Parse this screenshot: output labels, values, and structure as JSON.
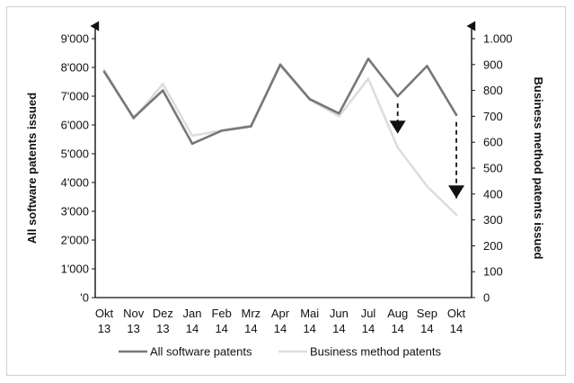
{
  "chart_data": {
    "type": "line",
    "categories": [
      [
        "Okt",
        "13"
      ],
      [
        "Nov",
        "13"
      ],
      [
        "Dez",
        "13"
      ],
      [
        "Jan",
        "14"
      ],
      [
        "Feb",
        "14"
      ],
      [
        "Mrz",
        "14"
      ],
      [
        "Apr",
        "14"
      ],
      [
        "Mai",
        "14"
      ],
      [
        "Jun",
        "14"
      ],
      [
        "Jul",
        "14"
      ],
      [
        "Aug",
        "14"
      ],
      [
        "Sep",
        "14"
      ],
      [
        "Okt",
        "14"
      ]
    ],
    "left_axis": {
      "label": "All software patents issued",
      "ylim": [
        0,
        9000
      ],
      "ticks": [
        0,
        1000,
        2000,
        3000,
        4000,
        5000,
        6000,
        7000,
        8000,
        9000
      ],
      "tick_labels": [
        "'0",
        "1'000",
        "2'000",
        "3'000",
        "4'000",
        "5'000",
        "6'000",
        "7'000",
        "8'000",
        "9'000"
      ]
    },
    "right_axis": {
      "label": "Business method patents issued",
      "ylim": [
        0,
        1000
      ],
      "ticks": [
        0,
        100,
        200,
        300,
        400,
        500,
        600,
        700,
        800,
        900,
        1000
      ],
      "tick_labels": [
        "0",
        "100",
        "200",
        "300",
        "400",
        "500",
        "600",
        "700",
        "800",
        "900",
        "1.000"
      ]
    },
    "series": [
      {
        "name": "All software patents",
        "axis": "left",
        "color": "#777777",
        "values": [
          7850,
          6250,
          7200,
          5350,
          5800,
          5950,
          8100,
          6900,
          6400,
          8300,
          7000,
          8050,
          6350
        ]
      },
      {
        "name": "Business method patents",
        "axis": "right",
        "color": "#dddddd",
        "values": [
          880,
          690,
          825,
          625,
          645,
          665,
          895,
          765,
          700,
          845,
          580,
          430,
          320
        ]
      }
    ],
    "annotations": [
      {
        "type": "dashed-arrow",
        "category_index": 10,
        "from_left_value": 7000,
        "to_left_value": 5450
      },
      {
        "type": "dashed-arrow",
        "category_index": 12,
        "from_left_value": 6350,
        "to_left_value": 3200
      }
    ],
    "legend_position": "bottom",
    "grid": false
  }
}
